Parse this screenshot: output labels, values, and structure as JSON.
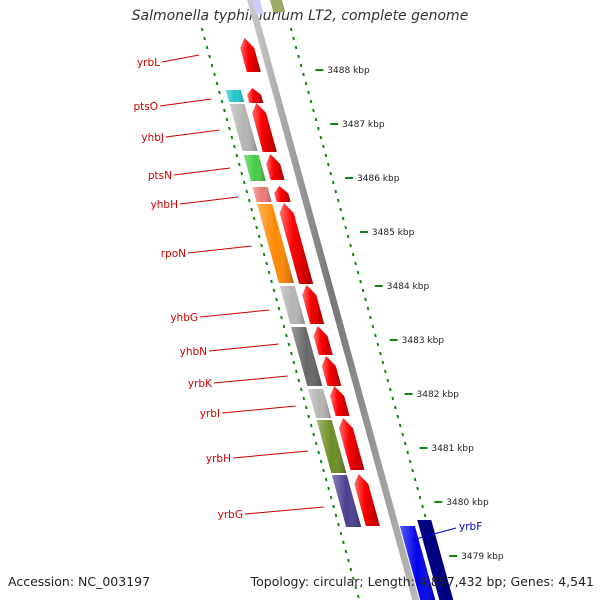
{
  "title": "Salmonella typhimurium LT2, complete genome",
  "footer": {
    "accession": "Accession: NC_003197",
    "stats": "Topology: circular; Length: 4,857,432 bp; Genes: 4,541"
  },
  "colors": {
    "gene_label": "#cc0000",
    "forward_gene_label": "#0000cc",
    "tick": "#118811",
    "backbone": "#888888",
    "cds_arrow": "#ff0000"
  },
  "scale_labels": [
    "3488 kbp",
    "3487 kbp",
    "3486 kbp",
    "3485 kbp",
    "3484 kbp",
    "3483 kbp",
    "3482 kbp",
    "3481 kbp",
    "3480 kbp",
    "3479 kbp"
  ],
  "reverse_genes": [
    {
      "name": "yrbL",
      "color": "#ff0000"
    },
    {
      "name": "ptsO",
      "color": "#22c8cc"
    },
    {
      "name": "yhbJ",
      "color": "#b4b4b4"
    },
    {
      "name": "ptsN",
      "color": "#44cc44"
    },
    {
      "name": "yhbH",
      "color": "#ee7777"
    },
    {
      "name": "rpoN",
      "color": "#ff8800"
    },
    {
      "name": "yhbG",
      "color": "#b4b4b4"
    },
    {
      "name": "yhbN",
      "color": "#666666"
    },
    {
      "name": "yrbK",
      "color": "#666666"
    },
    {
      "name": "yrbI",
      "color": "#b4b4b4"
    },
    {
      "name": "yrbH",
      "color": "#6b8e23"
    },
    {
      "name": "yrbG",
      "color": "#4b3f8f"
    }
  ],
  "forward_genes": [
    {
      "name": "yrbF",
      "color": "#0000ee"
    }
  ]
}
